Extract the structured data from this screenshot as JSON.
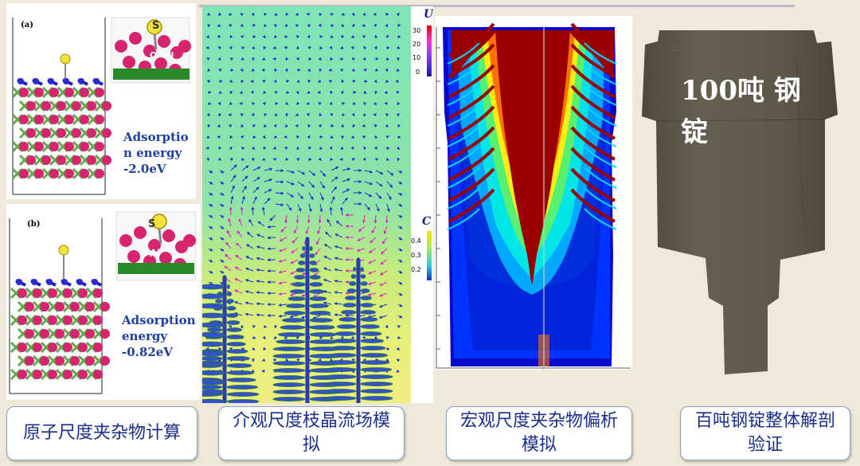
{
  "panels": {
    "a": {
      "tag": "(a)",
      "site_labels": [
        "S",
        "O",
        "Al"
      ],
      "adsorption": "Adsorptio\nn energy\n-2.0eV"
    },
    "b": {
      "tag": "(b)",
      "site_labels": [
        "S",
        "Al"
      ],
      "adsorption": "Adsorption\nenergy\n-0.82eV"
    },
    "flow": {
      "colorbar_u": {
        "title": "U",
        "ticks": [
          "30",
          "20",
          "10",
          "0"
        ]
      },
      "colorbar_c": {
        "title": "C",
        "ticks": [
          "0.4",
          "0.3",
          "0.2"
        ]
      }
    },
    "ingot": {
      "label": "100吨 钢锭"
    }
  },
  "captions": [
    "原子尺度夹杂物计算",
    "介观尺度枝晶流场模拟",
    "宏观尺度夹杂物偏析模拟",
    "百吨钢锭整体解剖验证"
  ],
  "colors": {
    "caption_text": "#1b2f8a",
    "o_atom": "#d6246e",
    "al_atom": "#5faa4a",
    "s_atom": "#f2e23b",
    "ingot": "#5f5a4c"
  }
}
